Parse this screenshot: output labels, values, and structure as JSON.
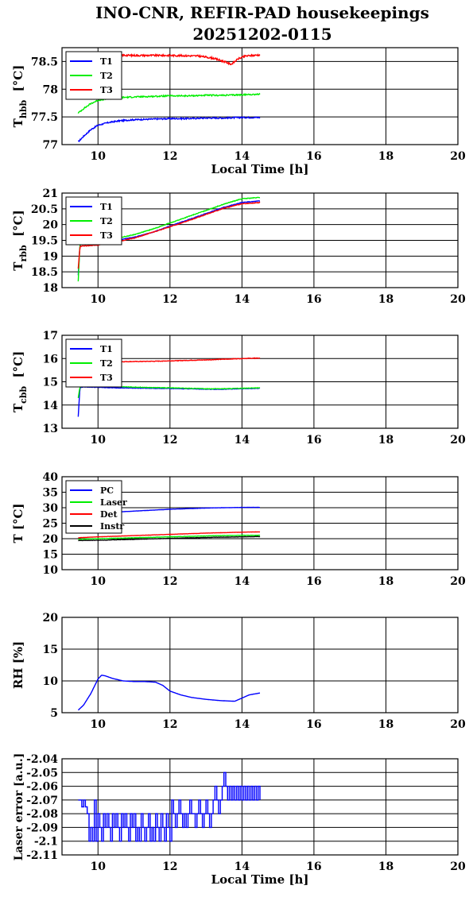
{
  "figure": {
    "title_line1": "INO-CNR, REFIR-PAD housekeepings",
    "title_line2": "20251202-0115"
  },
  "chart_data": [
    {
      "type": "line",
      "ylabel": "Thbb [°C]",
      "ylabel_main": "T",
      "ylabel_sub": "hbb",
      "ylabel_unit": "[°C]",
      "xlabel": "Local Time [h]",
      "xlim": [
        9,
        20
      ],
      "ylim": [
        77,
        78.75
      ],
      "xticks": [
        10,
        12,
        14,
        16,
        18,
        20
      ],
      "yticks": [
        77,
        77.5,
        78,
        78.5
      ],
      "ytick_labels": [
        "77",
        "77.5",
        "78",
        "78.5"
      ],
      "grid": true,
      "legend": "top-left",
      "series": [
        {
          "name": "T1",
          "color": "#0000ff",
          "noise": 0.012,
          "x": [
            9.45,
            9.6,
            9.8,
            10.0,
            10.3,
            10.6,
            11.0,
            11.5,
            12.0,
            12.5,
            13.0,
            13.5,
            14.0,
            14.5
          ],
          "y": [
            77.05,
            77.15,
            77.27,
            77.35,
            77.4,
            77.43,
            77.45,
            77.46,
            77.47,
            77.47,
            77.48,
            77.48,
            77.49,
            77.49
          ]
        },
        {
          "name": "T2",
          "color": "#00ee00",
          "noise": 0.012,
          "x": [
            9.45,
            9.6,
            9.8,
            10.0,
            10.3,
            10.6,
            11.0,
            11.5,
            12.0,
            12.5,
            13.0,
            13.5,
            14.0,
            14.5
          ],
          "y": [
            77.57,
            77.65,
            77.74,
            77.8,
            77.83,
            77.85,
            77.86,
            77.87,
            77.88,
            77.88,
            77.89,
            77.89,
            77.9,
            77.91
          ]
        },
        {
          "name": "T3",
          "color": "#ff0000",
          "noise": 0.015,
          "x": [
            9.45,
            10.0,
            11.0,
            12.0,
            12.8,
            13.2,
            13.5,
            13.7,
            13.9,
            14.1,
            14.5
          ],
          "y": [
            78.62,
            78.62,
            78.61,
            78.61,
            78.6,
            78.56,
            78.5,
            78.45,
            78.55,
            78.6,
            78.62
          ]
        }
      ]
    },
    {
      "type": "line",
      "ylabel": "Trbb [°C]",
      "ylabel_main": "T",
      "ylabel_sub": "rbb",
      "ylabel_unit": "[°C]",
      "xlabel": "",
      "xlim": [
        9,
        20
      ],
      "ylim": [
        18,
        21
      ],
      "xticks": [
        10,
        12,
        14,
        16,
        18,
        20
      ],
      "yticks": [
        18,
        18.5,
        19,
        19.5,
        20,
        20.5,
        21
      ],
      "ytick_labels": [
        "18",
        "18.5",
        "19",
        "19.5",
        "20",
        "20.5",
        "21"
      ],
      "grid": true,
      "legend": "top-left",
      "series": [
        {
          "name": "T1",
          "color": "#0000ff",
          "noise": 0.01,
          "x": [
            9.45,
            9.5,
            9.55,
            10.0,
            10.5,
            11.0,
            11.5,
            12.0,
            12.5,
            13.0,
            13.5,
            14.0,
            14.5
          ],
          "y": [
            18.4,
            19.35,
            19.4,
            19.4,
            19.5,
            19.6,
            19.75,
            19.95,
            20.15,
            20.35,
            20.55,
            20.7,
            20.75
          ]
        },
        {
          "name": "T2",
          "color": "#00ee00",
          "noise": 0.01,
          "x": [
            9.45,
            9.5,
            9.55,
            10.0,
            10.5,
            11.0,
            11.5,
            12.0,
            12.5,
            13.0,
            13.5,
            14.0,
            14.5
          ],
          "y": [
            18.2,
            19.4,
            19.45,
            19.48,
            19.56,
            19.68,
            19.85,
            20.05,
            20.25,
            20.45,
            20.65,
            20.82,
            20.86
          ]
        },
        {
          "name": "T3",
          "color": "#ff0000",
          "noise": 0.01,
          "x": [
            9.45,
            9.5,
            9.55,
            10.0,
            10.5,
            11.0,
            11.5,
            12.0,
            12.5,
            13.0,
            13.5,
            14.0,
            14.5
          ],
          "y": [
            18.6,
            19.3,
            19.32,
            19.35,
            19.45,
            19.57,
            19.75,
            19.93,
            20.12,
            20.32,
            20.52,
            20.66,
            20.7
          ]
        }
      ]
    },
    {
      "type": "line",
      "ylabel": "Tcbb [°C]",
      "ylabel_main": "T",
      "ylabel_sub": "cbb",
      "ylabel_unit": "[°C]",
      "xlabel": "",
      "xlim": [
        9,
        20
      ],
      "ylim": [
        13,
        17
      ],
      "xticks": [
        10,
        12,
        14,
        16,
        18,
        20
      ],
      "yticks": [
        13,
        14,
        15,
        16,
        17
      ],
      "ytick_labels": [
        "13",
        "14",
        "15",
        "16",
        "17"
      ],
      "grid": true,
      "legend": "top-left",
      "series": [
        {
          "name": "T1",
          "color": "#0000ff",
          "noise": 0.01,
          "x": [
            9.45,
            9.5,
            9.6,
            10.0,
            10.5,
            11.0,
            11.5,
            12.0,
            12.5,
            13.0,
            13.5,
            14.0,
            14.5
          ],
          "y": [
            13.5,
            14.75,
            14.78,
            14.76,
            14.74,
            14.73,
            14.72,
            14.71,
            14.7,
            14.68,
            14.68,
            14.7,
            14.72
          ]
        },
        {
          "name": "T2",
          "color": "#00ee00",
          "noise": 0.01,
          "x": [
            9.45,
            9.5,
            9.6,
            10.0,
            10.5,
            11.0,
            11.5,
            12.0,
            12.5,
            13.0,
            13.5,
            14.0,
            14.5
          ],
          "y": [
            14.3,
            14.78,
            14.8,
            14.8,
            14.79,
            14.77,
            14.75,
            14.74,
            14.72,
            14.7,
            14.7,
            14.72,
            14.74
          ]
        },
        {
          "name": "T3",
          "color": "#ff0000",
          "noise": 0.012,
          "x": [
            9.9,
            10.5,
            11.0,
            11.5,
            12.0,
            12.5,
            13.0,
            13.5,
            14.0,
            14.5
          ],
          "y": [
            15.85,
            15.86,
            15.87,
            15.88,
            15.9,
            15.92,
            15.94,
            15.97,
            16.0,
            16.02
          ]
        }
      ]
    },
    {
      "type": "line",
      "ylabel": "T [°C]",
      "ylabel_main": "T [°C]",
      "ylabel_sub": "",
      "ylabel_unit": "",
      "xlabel": "",
      "xlim": [
        9,
        20
      ],
      "ylim": [
        10,
        40
      ],
      "xticks": [
        10,
        12,
        14,
        16,
        18,
        20
      ],
      "yticks": [
        10,
        15,
        20,
        25,
        30,
        35,
        40
      ],
      "ytick_labels": [
        "10",
        "15",
        "20",
        "25",
        "30",
        "35",
        "40"
      ],
      "grid": true,
      "legend": "top-left",
      "series": [
        {
          "name": "PC",
          "color": "#0000ff",
          "noise": 0.03,
          "x": [
            9.45,
            10.0,
            10.5,
            11.0,
            11.5,
            12.0,
            12.5,
            13.0,
            13.5,
            14.0,
            14.5
          ],
          "y": [
            28.0,
            28.3,
            28.6,
            28.9,
            29.2,
            29.5,
            29.7,
            29.9,
            30.0,
            30.1,
            30.1
          ]
        },
        {
          "name": "Laser",
          "color": "#00ee00",
          "noise": 0.05,
          "x": [
            9.45,
            10.0,
            11.0,
            12.0,
            13.0,
            14.0,
            14.5
          ],
          "y": [
            19.8,
            20.0,
            20.3,
            20.6,
            20.9,
            21.1,
            21.1
          ]
        },
        {
          "name": "Det",
          "color": "#ff0000",
          "noise": 0.03,
          "x": [
            9.45,
            10.0,
            11.0,
            12.0,
            13.0,
            14.0,
            14.5
          ],
          "y": [
            20.3,
            20.6,
            21.0,
            21.4,
            21.8,
            22.1,
            22.2
          ]
        },
        {
          "name": "Instr",
          "color": "#000000",
          "noise": 0.05,
          "x": [
            9.45,
            10.0,
            11.0,
            12.0,
            13.0,
            14.0,
            14.5
          ],
          "y": [
            19.4,
            19.5,
            19.8,
            20.1,
            20.4,
            20.6,
            20.7
          ]
        }
      ]
    },
    {
      "type": "line",
      "ylabel": "RH [%]",
      "ylabel_main": "RH [%]",
      "ylabel_sub": "",
      "ylabel_unit": "",
      "xlabel": "",
      "xlim": [
        9,
        20
      ],
      "ylim": [
        5,
        20
      ],
      "xticks": [
        10,
        12,
        14,
        16,
        18,
        20
      ],
      "yticks": [
        5,
        10,
        15,
        20
      ],
      "ytick_labels": [
        "5",
        "10",
        "15",
        "20"
      ],
      "grid": true,
      "legend": "none",
      "series": [
        {
          "color": "#0000ff",
          "noise": 0,
          "x": [
            9.45,
            9.6,
            9.8,
            10.0,
            10.1,
            10.2,
            10.4,
            10.7,
            11.0,
            11.3,
            11.6,
            11.8,
            12.0,
            12.3,
            12.6,
            13.0,
            13.4,
            13.8,
            14.0,
            14.2,
            14.5
          ],
          "y": [
            5.4,
            6.2,
            8.0,
            10.3,
            10.9,
            10.8,
            10.4,
            10.0,
            9.9,
            9.9,
            9.8,
            9.3,
            8.4,
            7.8,
            7.4,
            7.1,
            6.9,
            6.8,
            7.3,
            7.8,
            8.1
          ]
        }
      ]
    },
    {
      "type": "line",
      "ylabel": "Laser error [a.u.]",
      "ylabel_main": "Laser error [a.u.]",
      "ylabel_sub": "",
      "ylabel_unit": "",
      "xlabel": "Local Time [h]",
      "xlim": [
        9,
        20
      ],
      "ylim": [
        -2.11,
        -2.04
      ],
      "xticks": [
        10,
        12,
        14,
        16,
        18,
        20
      ],
      "yticks": [
        -2.11,
        -2.1,
        -2.09,
        -2.08,
        -2.07,
        -2.06,
        -2.05,
        -2.04
      ],
      "ytick_labels": [
        "-2.11",
        "-2.1",
        "-2.09",
        "-2.08",
        "-2.07",
        "-2.06",
        "-2.05",
        "-2.04"
      ],
      "grid": true,
      "legend": "none",
      "series": [
        {
          "color": "#0000ff",
          "noise": 0,
          "step": true,
          "x": [
            9.45,
            9.55,
            9.6,
            9.65,
            9.7,
            9.75,
            9.8,
            9.85,
            9.9,
            9.95,
            10.0,
            10.05,
            10.1,
            10.15,
            10.2,
            10.25,
            10.3,
            10.35,
            10.4,
            10.45,
            10.5,
            10.55,
            10.6,
            10.65,
            10.7,
            10.75,
            10.8,
            10.85,
            10.9,
            10.95,
            11.0,
            11.05,
            11.1,
            11.15,
            11.2,
            11.25,
            11.3,
            11.35,
            11.4,
            11.45,
            11.5,
            11.55,
            11.6,
            11.65,
            11.7,
            11.75,
            11.8,
            11.85,
            11.9,
            11.95,
            12.0,
            12.05,
            12.1,
            12.15,
            12.2,
            12.25,
            12.3,
            12.35,
            12.4,
            12.45,
            12.5,
            12.55,
            12.6,
            12.65,
            12.7,
            12.75,
            12.8,
            12.85,
            12.9,
            12.95,
            13.0,
            13.05,
            13.1,
            13.15,
            13.2,
            13.25,
            13.3,
            13.35,
            13.4,
            13.45,
            13.5,
            13.55,
            13.6,
            13.65,
            13.7,
            13.75,
            13.8,
            13.85,
            13.9,
            13.95,
            14.0,
            14.05,
            14.1,
            14.15,
            14.2,
            14.25,
            14.3,
            14.35,
            14.4,
            14.45,
            14.5
          ],
          "y": [
            -2.07,
            -2.075,
            -2.07,
            -2.075,
            -2.08,
            -2.1,
            -2.09,
            -2.1,
            -2.07,
            -2.1,
            -2.08,
            -2.09,
            -2.1,
            -2.08,
            -2.09,
            -2.08,
            -2.09,
            -2.1,
            -2.08,
            -2.09,
            -2.08,
            -2.09,
            -2.1,
            -2.08,
            -2.09,
            -2.08,
            -2.09,
            -2.1,
            -2.08,
            -2.09,
            -2.08,
            -2.1,
            -2.09,
            -2.1,
            -2.08,
            -2.09,
            -2.1,
            -2.09,
            -2.08,
            -2.1,
            -2.09,
            -2.1,
            -2.08,
            -2.09,
            -2.1,
            -2.08,
            -2.09,
            -2.1,
            -2.08,
            -2.09,
            -2.1,
            -2.07,
            -2.08,
            -2.09,
            -2.08,
            -2.07,
            -2.08,
            -2.09,
            -2.08,
            -2.09,
            -2.08,
            -2.07,
            -2.08,
            -2.08,
            -2.09,
            -2.08,
            -2.07,
            -2.08,
            -2.09,
            -2.08,
            -2.07,
            -2.08,
            -2.09,
            -2.08,
            -2.07,
            -2.06,
            -2.07,
            -2.08,
            -2.07,
            -2.06,
            -2.05,
            -2.06,
            -2.07,
            -2.06,
            -2.07,
            -2.06,
            -2.07,
            -2.06,
            -2.07,
            -2.06,
            -2.07,
            -2.06,
            -2.07,
            -2.06,
            -2.07,
            -2.06,
            -2.07,
            -2.06,
            -2.07,
            -2.06,
            -2.07
          ]
        }
      ]
    }
  ]
}
